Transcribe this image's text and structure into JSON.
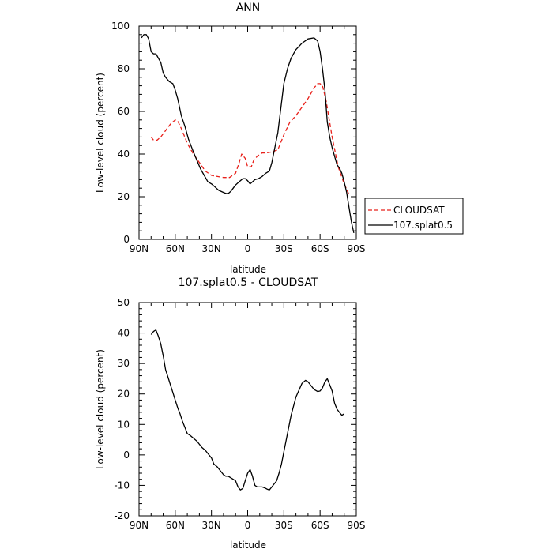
{
  "chart_data": [
    {
      "type": "line",
      "title": "ANN",
      "xlabel": "latitude",
      "ylabel": "Low-level cloud (percent)",
      "xlim": [
        90,
        -90
      ],
      "ylim": [
        0,
        100
      ],
      "x_tick_values": [
        90,
        60,
        30,
        0,
        -30,
        -60,
        -90
      ],
      "x_tick_labels": [
        "90N",
        "60N",
        "30N",
        "0",
        "30S",
        "60S",
        "90S"
      ],
      "y_ticks": [
        0,
        20,
        40,
        60,
        80,
        100
      ],
      "legend": {
        "placement": "right",
        "entries": [
          "CLOUDSAT",
          "107.splat0.5"
        ]
      },
      "series": [
        {
          "name": "CLOUDSAT",
          "color": "#e8201a",
          "dash": "dashed",
          "x": [
            80,
            78,
            75,
            72,
            68,
            64,
            60,
            58,
            55,
            50,
            45,
            40,
            35,
            30,
            25,
            20,
            15,
            10,
            7,
            5,
            2,
            0,
            -3,
            -5,
            -8,
            -12,
            -15,
            -20,
            -25,
            -30,
            -35,
            -40,
            -45,
            -50,
            -55,
            -58,
            -60,
            -62,
            -65,
            -70,
            -75,
            -80,
            -84
          ],
          "y": [
            48,
            46.5,
            46.5,
            48,
            51,
            54,
            56,
            55.5,
            52,
            45,
            40,
            36,
            32,
            30,
            29.5,
            29,
            29,
            31,
            36,
            40,
            38,
            34,
            34,
            37,
            39,
            40.5,
            40.5,
            41,
            42,
            49,
            55,
            58,
            62,
            66,
            71,
            73,
            73,
            72,
            65,
            48,
            34,
            26,
            21
          ]
        },
        {
          "name": "107.splat0.5",
          "color": "#000000",
          "dash": "solid",
          "x": [
            88,
            86,
            84,
            82,
            80,
            78,
            76,
            74,
            72,
            70,
            68,
            65,
            62,
            60,
            58,
            55,
            52,
            49,
            45,
            42,
            39,
            36,
            33,
            30,
            27,
            24,
            20,
            18,
            16,
            14,
            12,
            10,
            8,
            6,
            4,
            2,
            0,
            -2,
            -4,
            -6,
            -9,
            -12,
            -15,
            -18,
            -20,
            -25,
            -30,
            -33,
            -36,
            -40,
            -45,
            -50,
            -55,
            -58,
            -60,
            -62,
            -64,
            -66,
            -68,
            -70,
            -72,
            -74,
            -76,
            -78,
            -80,
            -82,
            -84,
            -86,
            -88
          ],
          "y": [
            94.5,
            96,
            96,
            94,
            88,
            87,
            87,
            85,
            83,
            78,
            76,
            74,
            73,
            70,
            66,
            58,
            53,
            47,
            41,
            37,
            33,
            30,
            27,
            26,
            24.5,
            23,
            22,
            21.5,
            21.5,
            22.5,
            24,
            25.5,
            26.5,
            27.5,
            28.5,
            28.5,
            27.5,
            26,
            27,
            28,
            28.5,
            29.5,
            31,
            32,
            36,
            50,
            73,
            80,
            85,
            89,
            92,
            94,
            94.5,
            93,
            88,
            80,
            70,
            55,
            48,
            43,
            39,
            35,
            33.5,
            31,
            27,
            22,
            15,
            8,
            3
          ]
        }
      ]
    },
    {
      "type": "line",
      "title": "107.splat0.5 - CLOUDSAT",
      "xlabel": "latitude",
      "ylabel": "Low-level cloud (percent)",
      "xlim": [
        90,
        -90
      ],
      "ylim": [
        -20,
        50
      ],
      "x_tick_values": [
        90,
        60,
        30,
        0,
        -30,
        -60,
        -90
      ],
      "x_tick_labels": [
        "90N",
        "60N",
        "30N",
        "0",
        "30S",
        "60S",
        "90S"
      ],
      "y_ticks": [
        -20,
        -10,
        0,
        10,
        20,
        30,
        40,
        50
      ],
      "series": [
        {
          "color": "#000000",
          "dash": "solid",
          "x": [
            80,
            78,
            76,
            74,
            72,
            70,
            68,
            66,
            64,
            62,
            60,
            58,
            56,
            54,
            52,
            50,
            48,
            45,
            42,
            40,
            38,
            35,
            32,
            30,
            28,
            25,
            22,
            20,
            18,
            16,
            14,
            12,
            10,
            8,
            6,
            4,
            2,
            0,
            -2,
            -4,
            -6,
            -8,
            -10,
            -12,
            -14,
            -16,
            -18,
            -20,
            -22,
            -24,
            -26,
            -28,
            -30,
            -33,
            -36,
            -40,
            -45,
            -48,
            -50,
            -52,
            -55,
            -58,
            -60,
            -62,
            -64,
            -66,
            -68,
            -70,
            -72,
            -74,
            -76,
            -78,
            -80
          ],
          "y": [
            39.5,
            40.5,
            41,
            39,
            36.5,
            32.5,
            28,
            25.5,
            23,
            20.5,
            18,
            15.5,
            13.5,
            11,
            9,
            7,
            6.5,
            5.5,
            4.5,
            3.5,
            2.5,
            1.5,
            0,
            -1,
            -3,
            -4,
            -5.5,
            -6.5,
            -7,
            -7,
            -7.5,
            -8,
            -8.5,
            -10.5,
            -11.5,
            -11,
            -8.5,
            -6,
            -4.8,
            -7,
            -10,
            -10.5,
            -10.5,
            -10.5,
            -10.8,
            -11.2,
            -11.5,
            -10.5,
            -9.5,
            -8.5,
            -6,
            -3,
            1,
            7,
            13,
            19,
            23.5,
            24.5,
            24,
            23,
            21.5,
            20.8,
            21,
            22,
            24,
            25,
            23,
            21,
            17,
            15,
            14,
            13,
            13.5
          ]
        }
      ]
    }
  ]
}
